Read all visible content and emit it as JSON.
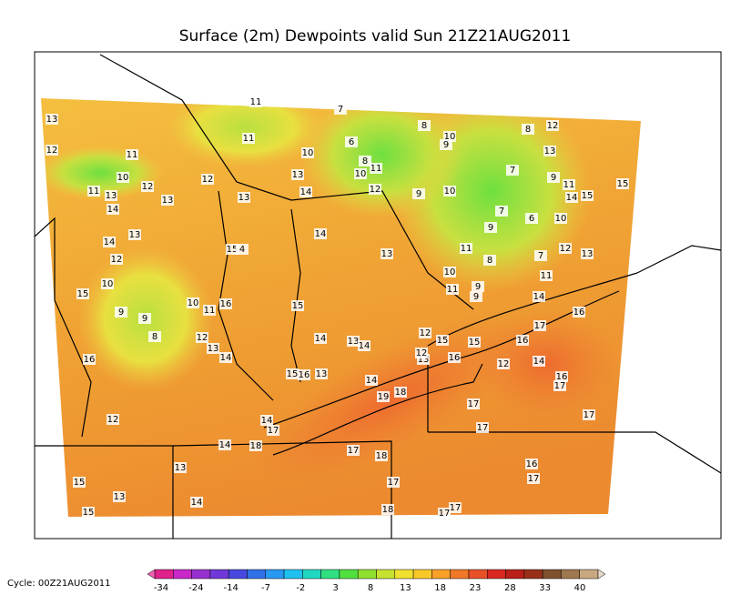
{
  "title": "Surface (2m) Dewpoints valid Sun 21Z21AUG2011",
  "cycle": "Cycle: 00Z21AUG2011",
  "colorbar_ticks": [
    -34,
    -24,
    -14,
    -7,
    -2,
    3,
    8,
    13,
    18,
    23,
    28,
    33,
    40
  ],
  "contour_labels": [
    13,
    12,
    11,
    10,
    11,
    13,
    12,
    14,
    13,
    11,
    11,
    10,
    13,
    12,
    13,
    14,
    12,
    10,
    11,
    8,
    6,
    7,
    8,
    10,
    9,
    12,
    8,
    13,
    7,
    9,
    11,
    14,
    15,
    15,
    9,
    10,
    7,
    9,
    6,
    10,
    12,
    13,
    7,
    11,
    8,
    11,
    10,
    11,
    9,
    9,
    14,
    16,
    17,
    16,
    15,
    15,
    12,
    14,
    13,
    15,
    4,
    14,
    13,
    12,
    15,
    10,
    9,
    9,
    8,
    10,
    11,
    16,
    15,
    14,
    13,
    14,
    12,
    13,
    14,
    16,
    15,
    16,
    13,
    14,
    19,
    18,
    16,
    12,
    14,
    16,
    17,
    17,
    17,
    13,
    12,
    17,
    14,
    17,
    18,
    14,
    12,
    17,
    18,
    16,
    17,
    13,
    15,
    13,
    15,
    14,
    17,
    18,
    17,
    17
  ]
}
